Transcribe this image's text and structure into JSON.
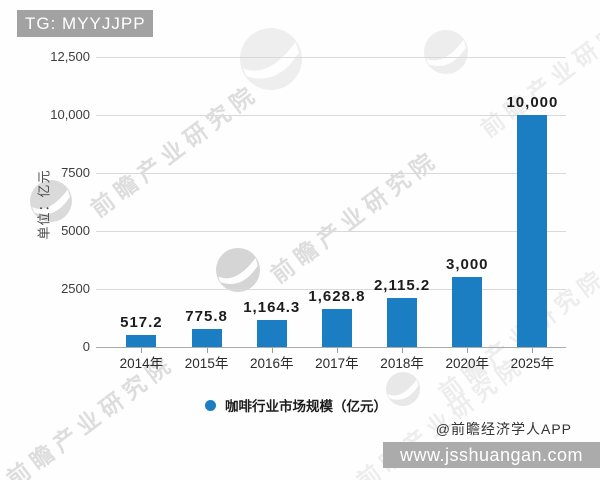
{
  "badge": {
    "label": "TG: MYYJJPP"
  },
  "watermark": {
    "text": "前瞻产业研究院",
    "source_label": "@前瞻经济学人APP"
  },
  "banner": {
    "url": "www.jsshuangan.com"
  },
  "chart_data": {
    "type": "bar",
    "title": "",
    "categories": [
      "2014年",
      "2015年",
      "2016年",
      "2017年",
      "2018年",
      "2020年",
      "2025年"
    ],
    "values": [
      517.2,
      775.8,
      1164.3,
      1628.8,
      2115.2,
      3000,
      10000
    ],
    "value_labels": [
      "517.2",
      "775.8",
      "1,164.3",
      "1,628.8",
      "2,115.2",
      "3,000",
      "10,000"
    ],
    "ylabel": "单位：亿元",
    "xlabel": "",
    "ylim": [
      0,
      12500
    ],
    "yticks": [
      {
        "value": 0,
        "label": "0"
      },
      {
        "value": 2500,
        "label": "2500"
      },
      {
        "value": 5000,
        "label": "5000"
      },
      {
        "value": 7500,
        "label": "7500"
      },
      {
        "value": 10000,
        "label": "10,000"
      },
      {
        "value": 12500,
        "label": "12,500"
      }
    ],
    "grid": true,
    "legend": [
      "咖啡行业市场规模（亿元）"
    ],
    "legend_position": "bottom",
    "bar_color": "#1b7ec2"
  }
}
